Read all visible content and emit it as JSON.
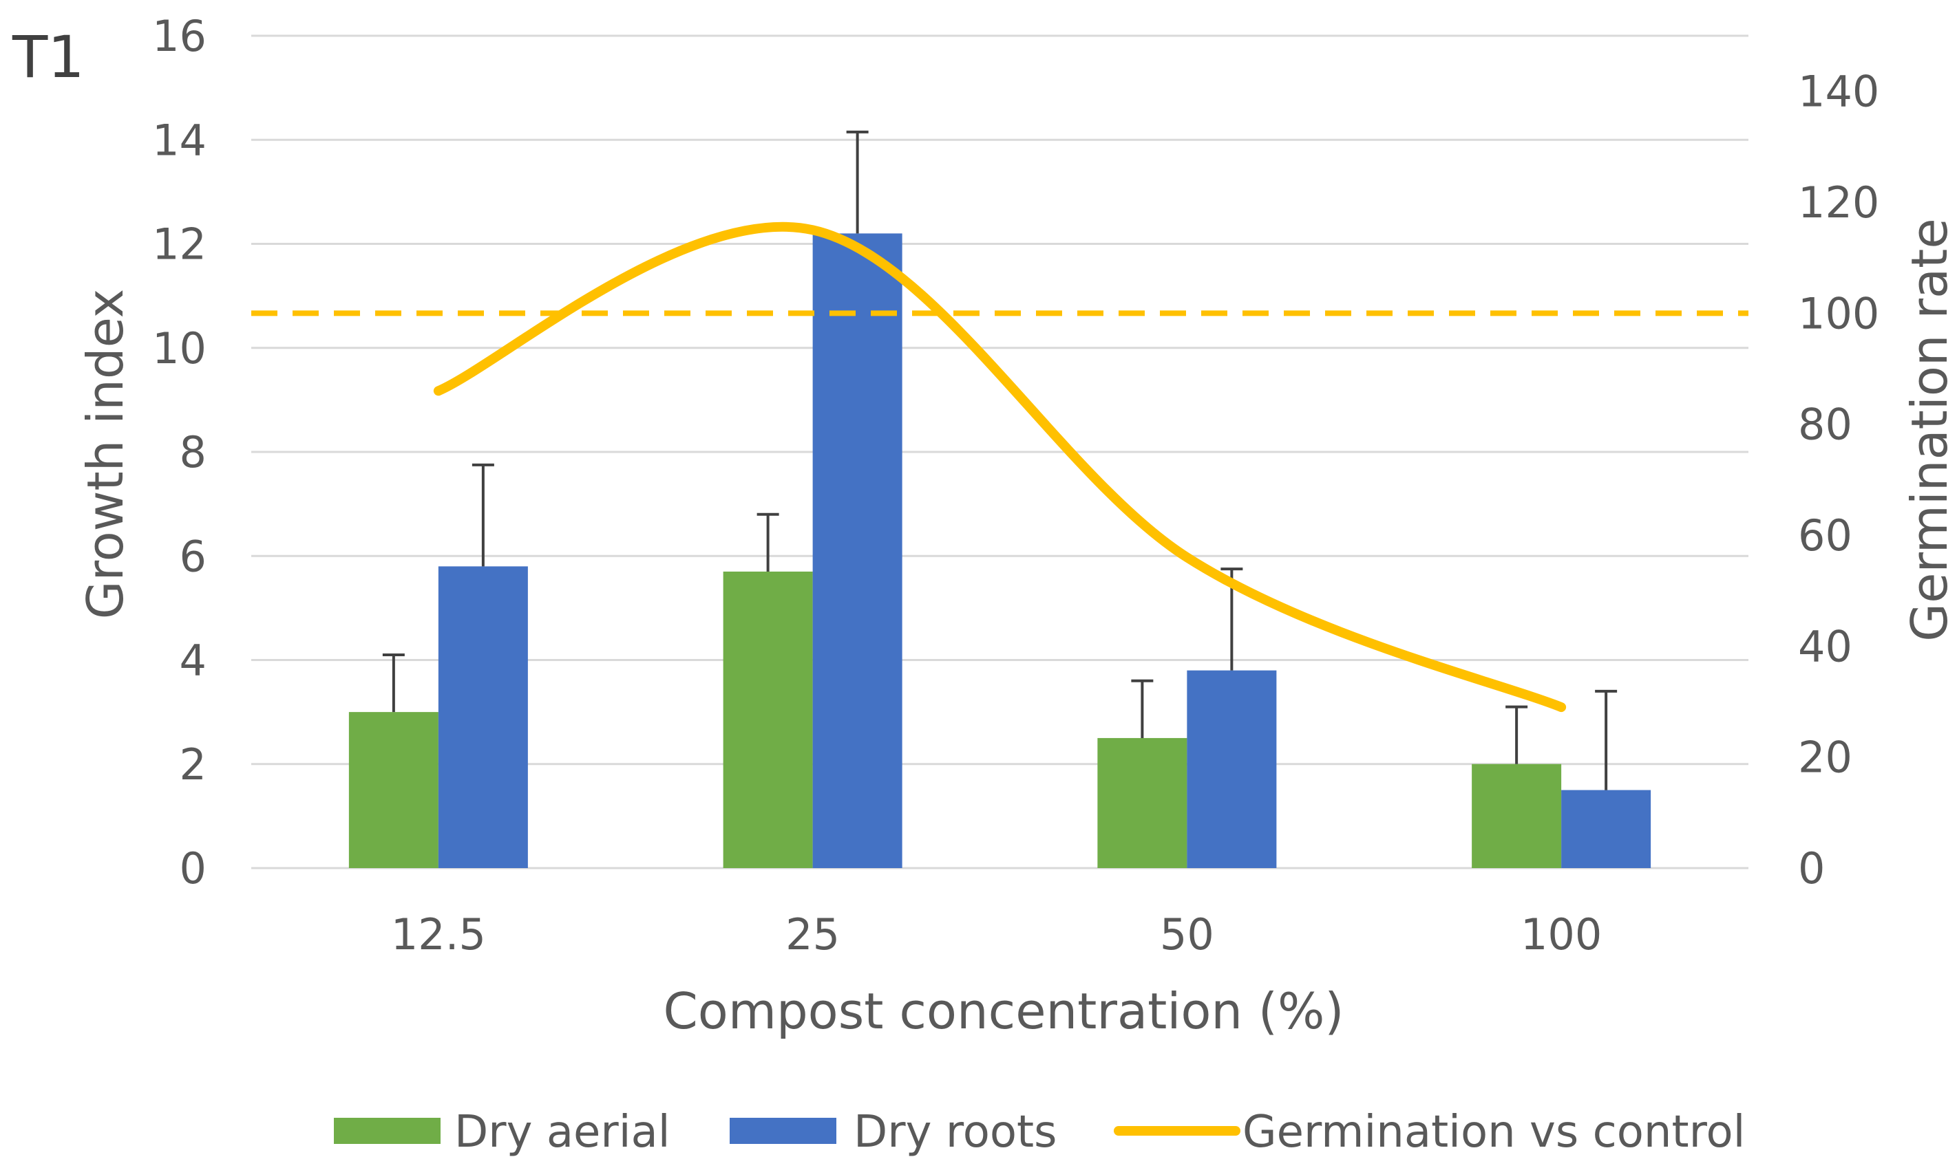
{
  "panel_label": "T1",
  "colors": {
    "dry_aerial": "#70AD47",
    "dry_roots": "#4472C4",
    "germination": "#FFC000",
    "grid": "#D9D9D9",
    "error_bar": "#404040",
    "text": "#595959"
  },
  "chart_data": {
    "type": "bar",
    "title": "",
    "xlabel": "Compost concentration (%)",
    "ylabel": "Growth index",
    "y2label": "Germination rate",
    "categories": [
      "12.5",
      "25",
      "50",
      "100"
    ],
    "ylim": [
      0,
      16
    ],
    "yticks": [
      0,
      2,
      4,
      6,
      8,
      10,
      12,
      14,
      16
    ],
    "y2lim": [
      0,
      150
    ],
    "y2ticks": [
      0,
      20,
      40,
      60,
      80,
      100,
      120,
      140
    ],
    "grid": true,
    "legend_position": "bottom",
    "series": [
      {
        "name": "Dry aerial",
        "type": "bar",
        "axis": "left",
        "values": [
          3.0,
          5.7,
          2.5,
          2.0
        ],
        "errors": [
          1.1,
          1.1,
          1.1,
          1.1
        ]
      },
      {
        "name": "Dry roots",
        "type": "bar",
        "axis": "left",
        "values": [
          5.8,
          12.2,
          3.8,
          1.5
        ],
        "errors": [
          1.95,
          1.95,
          1.95,
          1.9
        ]
      },
      {
        "name": "Germination vs control",
        "type": "line",
        "axis": "right",
        "smooth": true,
        "values": [
          86,
          115,
          56,
          29
        ]
      }
    ],
    "reference_line": {
      "axis": "right",
      "value": 100,
      "style": "dashed"
    }
  }
}
